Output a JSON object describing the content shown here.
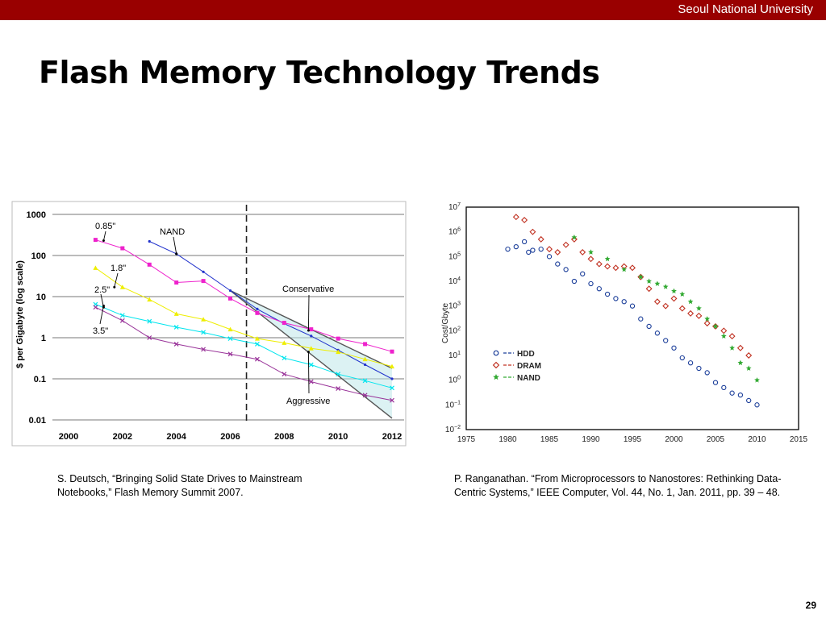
{
  "header": {
    "university": "Seoul National University",
    "title": "Flash Memory Technology Trends",
    "page_number": "29"
  },
  "citations": {
    "left": "S. Deutsch, “Bringing Solid State Drives to Mainstream Notebooks,” Flash Memory Summit 2007.",
    "right": "P. Ranganathan. “From Microprocessors to Nanostores: Rethinking Data-Centric Systems,” IEEE Computer, Vol. 44, No. 1, Jan. 2011, pp. 39 – 48."
  },
  "chart_data": [
    {
      "type": "line",
      "title": "",
      "xlabel": "",
      "ylabel": "$ per Gigabyte (log scale)",
      "yscale": "log",
      "xlim": [
        2000,
        2012
      ],
      "ylim": [
        0.01,
        1000
      ],
      "x_ticks": [
        2000,
        2002,
        2004,
        2006,
        2008,
        2010,
        2012
      ],
      "x_tick_labels": [
        "2000",
        "2002",
        "2004",
        "2006",
        "2008",
        "2010",
        "2012"
      ],
      "y_ticks": [
        0.01,
        0.1,
        1,
        10,
        100,
        1000
      ],
      "y_tick_labels": [
        "0.01",
        "0.1",
        "1",
        "10",
        "100",
        "1000"
      ],
      "grid": true,
      "divider_year": 2006.6,
      "colors": {
        "nand": "#2233cc",
        "0.85in": "#ee22cc",
        "1.8in": "#eeee00",
        "2.5in": "#00e5ee",
        "3.5in": "#993399",
        "projection": "#555555"
      },
      "series": [
        {
          "key": "nand",
          "x": [
            2003,
            2004,
            2005,
            2006,
            2007,
            2008,
            2009,
            2010,
            2011,
            2012
          ],
          "y": [
            220,
            110,
            40,
            14,
            5,
            2.2,
            1.1,
            0.5,
            0.22,
            0.1
          ]
        },
        {
          "key": "0.85in",
          "x": [
            2001,
            2002,
            2003,
            2004,
            2005,
            2006,
            2007,
            2008,
            2009,
            2010,
            2011,
            2012
          ],
          "y": [
            240,
            150,
            60,
            22,
            24,
            9,
            4,
            2.3,
            1.6,
            0.95,
            0.7,
            0.46
          ]
        },
        {
          "key": "1.8in",
          "x": [
            2001,
            2002,
            2003,
            2004,
            2005,
            2006,
            2007,
            2008,
            2009,
            2010,
            2011,
            2012
          ],
          "y": [
            50,
            17,
            8.5,
            3.8,
            2.8,
            1.6,
            0.95,
            0.75,
            0.55,
            0.45,
            0.3,
            0.2
          ]
        },
        {
          "key": "2.5in",
          "x": [
            2001,
            2002,
            2003,
            2004,
            2005,
            2006,
            2007,
            2008,
            2009,
            2010,
            2011,
            2012
          ],
          "y": [
            6.5,
            3.5,
            2.5,
            1.8,
            1.35,
            0.95,
            0.7,
            0.32,
            0.22,
            0.13,
            0.09,
            0.06
          ]
        },
        {
          "key": "3.5in",
          "x": [
            2001,
            2002,
            2003,
            2004,
            2005,
            2006,
            2007,
            2008,
            2009,
            2010,
            2011,
            2012
          ],
          "y": [
            5.5,
            2.6,
            1.0,
            0.7,
            0.52,
            0.4,
            0.3,
            0.13,
            0.085,
            0.058,
            0.04,
            0.03
          ]
        }
      ],
      "projections": [
        {
          "label": "Conservative",
          "x": [
            2006,
            2012
          ],
          "y": [
            14,
            0.18
          ]
        },
        {
          "label": "Aggressive",
          "x": [
            2006,
            2012
          ],
          "y": [
            14,
            0.011
          ]
        }
      ],
      "annotations": [
        {
          "text": "0.85\"",
          "target": [
            2001.3,
            230
          ]
        },
        {
          "text": "NAND",
          "target": [
            2004,
            110
          ]
        },
        {
          "text": "1.8\"",
          "target": [
            2001.7,
            17
          ]
        },
        {
          "text": "2.5\"",
          "target": [
            2001.3,
            5.5
          ]
        },
        {
          "text": "3.5\"",
          "target": [
            2001.3,
            6.0
          ]
        },
        {
          "text": "Conservative",
          "target": [
            2008.9,
            1.5
          ]
        },
        {
          "text": "Aggressive",
          "target": [
            2008.9,
            0.45
          ]
        }
      ]
    },
    {
      "type": "scatter",
      "title": "",
      "xlabel": "",
      "ylabel": "Cost/Gbyte",
      "yscale": "log",
      "xlim": [
        1975,
        2015
      ],
      "ylim": [
        0.01,
        10000000
      ],
      "x_ticks": [
        1975,
        1980,
        1985,
        1990,
        1995,
        2000,
        2005,
        2010,
        2015
      ],
      "x_tick_labels": [
        "1975",
        "1980",
        "1985",
        "1990",
        "1995",
        "2000",
        "2005",
        "2010",
        "2015"
      ],
      "y_tick_exponents": [
        -2,
        -1,
        0,
        1,
        2,
        3,
        4,
        5,
        6,
        7
      ],
      "y_tick_base": "10",
      "legend_placement": "bottom-left",
      "series": [
        {
          "name": "HDD",
          "color": "#1a3d99",
          "marker": "circle",
          "x": [
            1980,
            1981,
            1982,
            1982.5,
            1983,
            1984,
            1985,
            1986,
            1987,
            1988,
            1989,
            1990,
            1991,
            1992,
            1993,
            1994,
            1995,
            1996,
            1997,
            1998,
            1999,
            2000,
            2001,
            2002,
            2003,
            2004,
            2005,
            2006,
            2007,
            2008,
            2009,
            2010
          ],
          "y": [
            200000,
            250000,
            400000,
            150000,
            180000,
            200000,
            100000,
            50000,
            30000,
            10000,
            20000,
            8000,
            5000,
            3000,
            2000,
            1500,
            1000,
            300,
            150,
            80,
            40,
            20,
            8,
            5,
            3,
            2,
            0.8,
            0.5,
            0.3,
            0.25,
            0.15,
            0.1
          ]
        },
        {
          "name": "DRAM",
          "color": "#c03020",
          "marker": "diamond",
          "x": [
            1981,
            1982,
            1983,
            1984,
            1985,
            1986,
            1987,
            1988,
            1989,
            1990,
            1991,
            1992,
            1993,
            1994,
            1995,
            1996,
            1997,
            1998,
            1999,
            2000,
            2001,
            2002,
            2003,
            2004,
            2005,
            2006,
            2007,
            2008,
            2009
          ],
          "y": [
            4000000,
            3000000,
            1000000,
            500000,
            200000,
            150000,
            300000,
            500000,
            150000,
            80000,
            50000,
            40000,
            35000,
            40000,
            35000,
            15000,
            5000,
            1500,
            1000,
            2000,
            800,
            500,
            400,
            200,
            150,
            100,
            60,
            20,
            10
          ]
        },
        {
          "name": "NAND",
          "color": "#33aa33",
          "marker": "star",
          "x": [
            1988,
            1990,
            1992,
            1994,
            1996,
            1997,
            1998,
            1999,
            2000,
            2001,
            2002,
            2003,
            2004,
            2005,
            2006,
            2007,
            2008,
            2009,
            2010
          ],
          "y": [
            600000,
            150000,
            80000,
            30000,
            15000,
            10000,
            8000,
            6000,
            4000,
            3000,
            1500,
            800,
            300,
            150,
            60,
            20,
            5,
            3,
            1
          ]
        }
      ]
    }
  ]
}
